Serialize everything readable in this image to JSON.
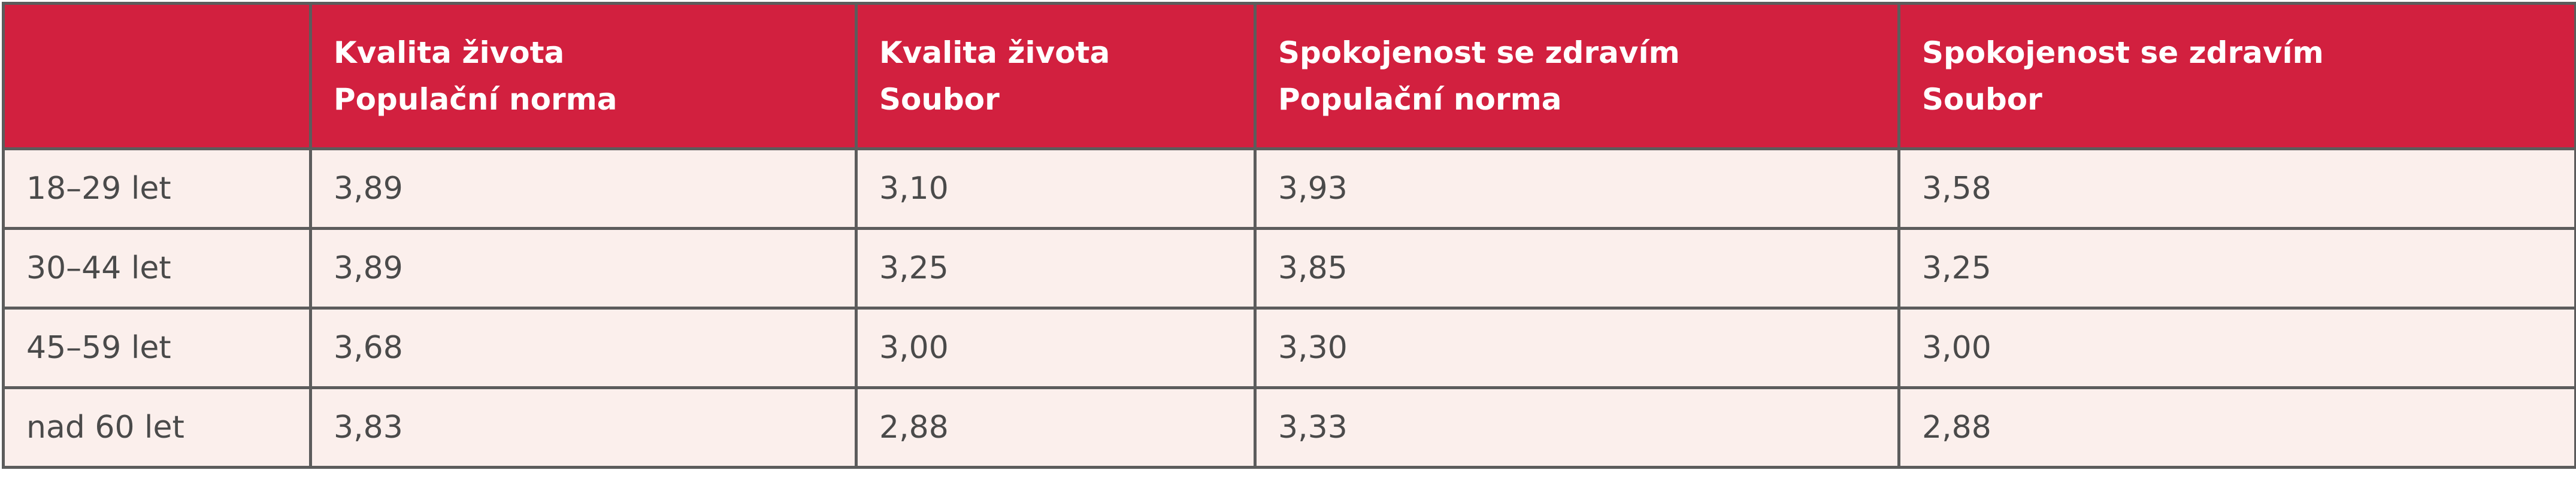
{
  "table": {
    "header": [
      [
        "Kvalita života",
        "Populační norma"
      ],
      [
        "Kvalita života",
        "Soubor"
      ],
      [
        "Spokojenost se zdravím",
        "Populační norma"
      ],
      [
        "Spokojenost se zdravím",
        "Soubor"
      ]
    ],
    "rows": [
      [
        "18–29 let",
        "3,89",
        "3,10",
        "3,93",
        "3,58"
      ],
      [
        "30–44 let",
        "3,89",
        "3,25",
        "3,85",
        "3,25"
      ],
      [
        "45–59 let",
        "3,68",
        "3,00",
        "3,30",
        "3,00"
      ],
      [
        "nad 60 let",
        "3,83",
        "2,88",
        "3,33",
        "2,88"
      ]
    ]
  }
}
